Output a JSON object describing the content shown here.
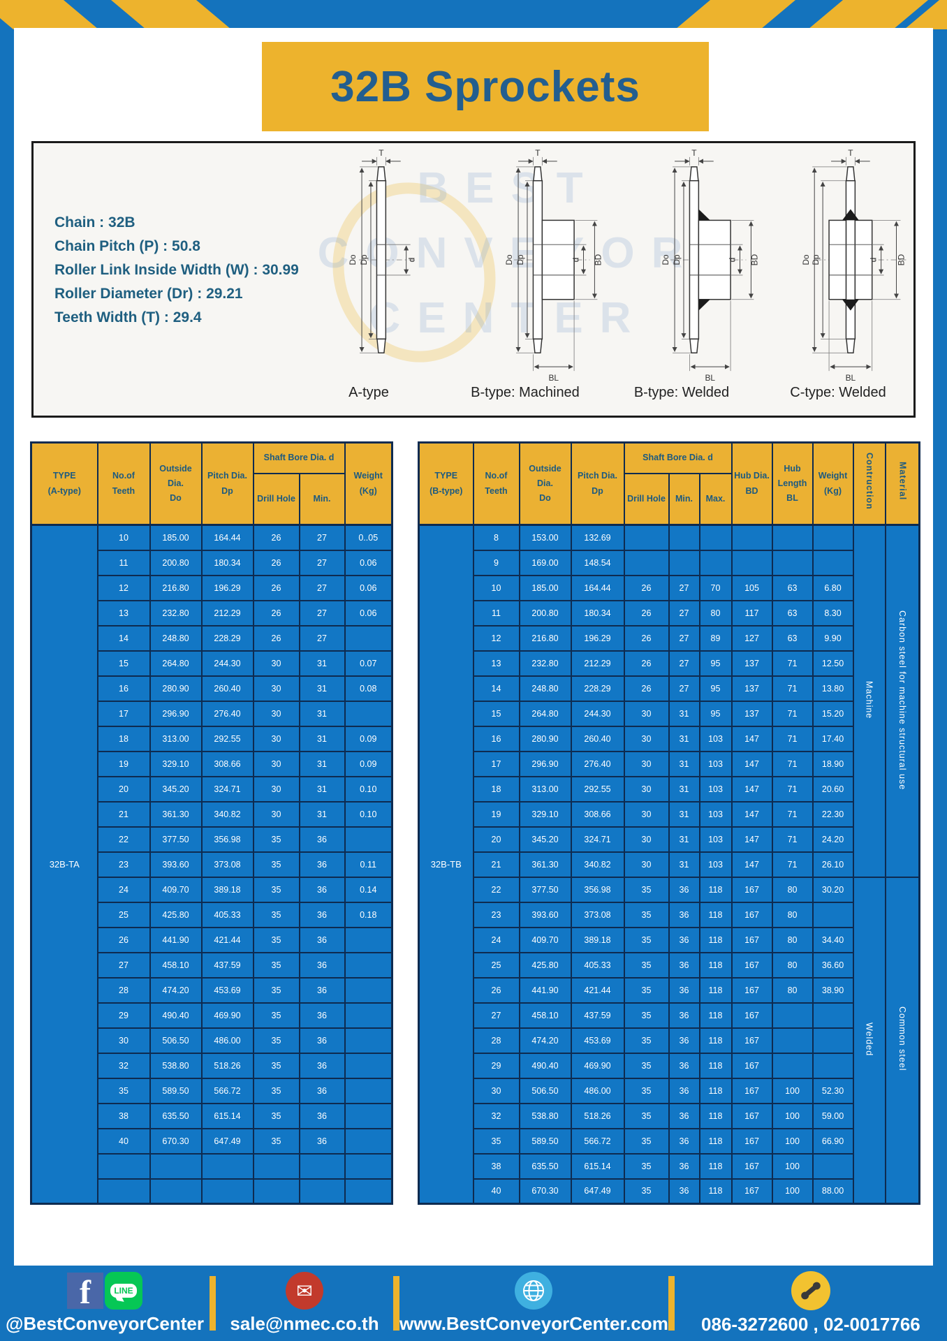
{
  "page": {
    "title": "32B Sprockets"
  },
  "colors": {
    "frame_blue": "#1473BD",
    "accent_yellow": "#EDB32D",
    "header_yellow": "#EBB133",
    "cell_blue": "#1277C5",
    "border_navy": "#0E2B50",
    "title_navy": "#235E8F",
    "header_text": "#1C5A80",
    "spec_blue": "#1F5F80"
  },
  "specs": {
    "sep": " : ",
    "lines": [
      {
        "label": "Chain",
        "value": "32B"
      },
      {
        "label": "Chain Pitch (P)",
        "value": "50.8"
      },
      {
        "label": "Roller Link Inside Width (W)",
        "value": "30.99"
      },
      {
        "label": "Roller Diameter (Dr)",
        "value": "29.21"
      },
      {
        "label": "Teeth Width (T)",
        "value": "29.4"
      }
    ]
  },
  "diagram": {
    "watermark": {
      "line1": "BEST",
      "line2": "CONVEYOR",
      "line3": "CENTER"
    },
    "captions": [
      "A-type",
      "B-type: Machined",
      "B-type: Welded",
      "C-type: Welded"
    ],
    "dims": {
      "T": "T",
      "Do": "Do",
      "Dp": "Dp",
      "d": "d",
      "BD": "BD",
      "BL": "BL"
    }
  },
  "table_a": {
    "headers": {
      "type": "TYPE\n(A-type)",
      "teeth": "No.of\nTeeth",
      "outside": "Outside\nDia.\nDo",
      "pitch": "Pitch Dia.\nDp",
      "shaft_bore": "Shaft Bore Dia. d",
      "drill": "Drill Hole",
      "min": "Min.",
      "weight": "Weight\n(Kg)"
    },
    "type_label": "32B-TA",
    "rows": [
      [
        "10",
        "185.00",
        "164.44",
        "26",
        "27",
        "0..05"
      ],
      [
        "11",
        "200.80",
        "180.34",
        "26",
        "27",
        "0.06"
      ],
      [
        "12",
        "216.80",
        "196.29",
        "26",
        "27",
        "0.06"
      ],
      [
        "13",
        "232.80",
        "212.29",
        "26",
        "27",
        "0.06"
      ],
      [
        "14",
        "248.80",
        "228.29",
        "26",
        "27",
        ""
      ],
      [
        "15",
        "264.80",
        "244.30",
        "30",
        "31",
        "0.07"
      ],
      [
        "16",
        "280.90",
        "260.40",
        "30",
        "31",
        "0.08"
      ],
      [
        "17",
        "296.90",
        "276.40",
        "30",
        "31",
        ""
      ],
      [
        "18",
        "313.00",
        "292.55",
        "30",
        "31",
        "0.09"
      ],
      [
        "19",
        "329.10",
        "308.66",
        "30",
        "31",
        "0.09"
      ],
      [
        "20",
        "345.20",
        "324.71",
        "30",
        "31",
        "0.10"
      ],
      [
        "21",
        "361.30",
        "340.82",
        "30",
        "31",
        "0.10"
      ],
      [
        "22",
        "377.50",
        "356.98",
        "35",
        "36",
        ""
      ],
      [
        "23",
        "393.60",
        "373.08",
        "35",
        "36",
        "0.11"
      ],
      [
        "24",
        "409.70",
        "389.18",
        "35",
        "36",
        "0.14"
      ],
      [
        "25",
        "425.80",
        "405.33",
        "35",
        "36",
        "0.18"
      ],
      [
        "26",
        "441.90",
        "421.44",
        "35",
        "36",
        ""
      ],
      [
        "27",
        "458.10",
        "437.59",
        "35",
        "36",
        ""
      ],
      [
        "28",
        "474.20",
        "453.69",
        "35",
        "36",
        ""
      ],
      [
        "29",
        "490.40",
        "469.90",
        "35",
        "36",
        ""
      ],
      [
        "30",
        "506.50",
        "486.00",
        "35",
        "36",
        ""
      ],
      [
        "32",
        "538.80",
        "518.26",
        "35",
        "36",
        ""
      ],
      [
        "35",
        "589.50",
        "566.72",
        "35",
        "36",
        ""
      ],
      [
        "38",
        "635.50",
        "615.14",
        "35",
        "36",
        ""
      ],
      [
        "40",
        "670.30",
        "647.49",
        "35",
        "36",
        ""
      ],
      [
        "",
        "",
        "",
        "",
        "",
        ""
      ],
      [
        "",
        "",
        "",
        "",
        "",
        ""
      ]
    ]
  },
  "table_b": {
    "headers": {
      "type": "TYPE\n(B-type)",
      "teeth": "No.of\nTeeth",
      "outside": "Outside\nDia.\nDo",
      "pitch": "Pitch Dia.\nDp",
      "shaft_bore": "Shaft Bore Dia. d",
      "drill": "Drill Hole",
      "min": "Min.",
      "max": "Max.",
      "hub_dia": "Hub Dia.\nBD",
      "hub_len": "Hub\nLength\nBL",
      "weight": "Weight\n(Kg)",
      "construction": "Contruction",
      "material": "Material"
    },
    "type_label": "32B-TB",
    "construction_groups": [
      {
        "label": "Machine",
        "span": 14
      },
      {
        "label": "Welded",
        "span": 13
      }
    ],
    "material_groups": [
      {
        "label": "Carbon steel for machine structural use",
        "span": 14
      },
      {
        "label": "Common steel",
        "span": 13
      }
    ],
    "rows": [
      [
        "8",
        "153.00",
        "132.69",
        "",
        "",
        "",
        "",
        "",
        ""
      ],
      [
        "9",
        "169.00",
        "148.54",
        "",
        "",
        "",
        "",
        "",
        ""
      ],
      [
        "10",
        "185.00",
        "164.44",
        "26",
        "27",
        "70",
        "105",
        "63",
        "6.80"
      ],
      [
        "11",
        "200.80",
        "180.34",
        "26",
        "27",
        "80",
        "117",
        "63",
        "8.30"
      ],
      [
        "12",
        "216.80",
        "196.29",
        "26",
        "27",
        "89",
        "127",
        "63",
        "9.90"
      ],
      [
        "13",
        "232.80",
        "212.29",
        "26",
        "27",
        "95",
        "137",
        "71",
        "12.50"
      ],
      [
        "14",
        "248.80",
        "228.29",
        "26",
        "27",
        "95",
        "137",
        "71",
        "13.80"
      ],
      [
        "15",
        "264.80",
        "244.30",
        "30",
        "31",
        "95",
        "137",
        "71",
        "15.20"
      ],
      [
        "16",
        "280.90",
        "260.40",
        "30",
        "31",
        "103",
        "147",
        "71",
        "17.40"
      ],
      [
        "17",
        "296.90",
        "276.40",
        "30",
        "31",
        "103",
        "147",
        "71",
        "18.90"
      ],
      [
        "18",
        "313.00",
        "292.55",
        "30",
        "31",
        "103",
        "147",
        "71",
        "20.60"
      ],
      [
        "19",
        "329.10",
        "308.66",
        "30",
        "31",
        "103",
        "147",
        "71",
        "22.30"
      ],
      [
        "20",
        "345.20",
        "324.71",
        "30",
        "31",
        "103",
        "147",
        "71",
        "24.20"
      ],
      [
        "21",
        "361.30",
        "340.82",
        "30",
        "31",
        "103",
        "147",
        "71",
        "26.10"
      ],
      [
        "22",
        "377.50",
        "356.98",
        "35",
        "36",
        "118",
        "167",
        "80",
        "30.20"
      ],
      [
        "23",
        "393.60",
        "373.08",
        "35",
        "36",
        "118",
        "167",
        "80",
        ""
      ],
      [
        "24",
        "409.70",
        "389.18",
        "35",
        "36",
        "118",
        "167",
        "80",
        "34.40"
      ],
      [
        "25",
        "425.80",
        "405.33",
        "35",
        "36",
        "118",
        "167",
        "80",
        "36.60"
      ],
      [
        "26",
        "441.90",
        "421.44",
        "35",
        "36",
        "118",
        "167",
        "80",
        "38.90"
      ],
      [
        "27",
        "458.10",
        "437.59",
        "35",
        "36",
        "118",
        "167",
        "",
        ""
      ],
      [
        "28",
        "474.20",
        "453.69",
        "35",
        "36",
        "118",
        "167",
        "",
        ""
      ],
      [
        "29",
        "490.40",
        "469.90",
        "35",
        "36",
        "118",
        "167",
        "",
        ""
      ],
      [
        "30",
        "506.50",
        "486.00",
        "35",
        "36",
        "118",
        "167",
        "100",
        "52.30"
      ],
      [
        "32",
        "538.80",
        "518.26",
        "35",
        "36",
        "118",
        "167",
        "100",
        "59.00"
      ],
      [
        "35",
        "589.50",
        "566.72",
        "35",
        "36",
        "118",
        "167",
        "100",
        "66.90"
      ],
      [
        "38",
        "635.50",
        "615.14",
        "35",
        "36",
        "118",
        "167",
        "100",
        ""
      ],
      [
        "40",
        "670.30",
        "647.49",
        "35",
        "36",
        "118",
        "167",
        "100",
        "88.00"
      ]
    ]
  },
  "footer": {
    "social": {
      "label": "@BestConveyorCenter"
    },
    "email": {
      "label": "sale@nmec.co.th"
    },
    "website": {
      "label": "www.BestConveyorCenter.com"
    },
    "phone": {
      "label": "086-3272600 , 02-0017766"
    },
    "icons": {
      "facebook_letter": "f",
      "line_text": "LINE",
      "envelope_glyph": "✉"
    }
  }
}
